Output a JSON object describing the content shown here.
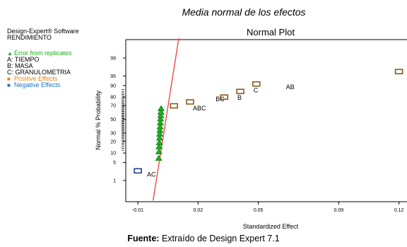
{
  "figure_title": "Media normal de los efectos",
  "caption": {
    "label": "Fuente:",
    "text": " Extraído de Design Expert 7.1"
  },
  "software": "Design-Expert® Software",
  "response": "RENDIMIENTO",
  "legend": [
    {
      "marker": "▲",
      "text": "Error from replicates",
      "color": "#1fae1f"
    },
    {
      "marker": "",
      "text": "A: TIEMPO",
      "color": "#000000"
    },
    {
      "marker": "",
      "text": "B: MASA",
      "color": "#000000"
    },
    {
      "marker": "",
      "text": "C: GRANULOMETRIA",
      "color": "#000000"
    },
    {
      "marker": "■",
      "text": "Positive Effects",
      "color": "#e8860f"
    },
    {
      "marker": "■",
      "text": "Negative Effects",
      "color": "#1f72d6"
    }
  ],
  "chart_data": {
    "type": "scatter",
    "title": "Normal Plot",
    "xlabel": "Standardized Effect",
    "ylabel": "Normal % Probability",
    "y_scale": "normal-probability",
    "xlim": [
      -0.016,
      0.124
    ],
    "x_ticks": [
      -0.01,
      0.02,
      0.05,
      0.09,
      0.12
    ],
    "x_tick_labels": [
      "-0.01",
      "0.02",
      "0.05",
      "0.09",
      "0.12"
    ],
    "y_ticks": [
      1,
      5,
      10,
      20,
      30,
      50,
      70,
      80,
      90,
      95,
      99
    ],
    "y_tick_labels": [
      "1",
      "5",
      "10",
      "20",
      "30",
      "50",
      "70",
      "80",
      "90",
      "95",
      "99"
    ],
    "grid": false,
    "line_color": "#f04a4a",
    "line": [
      [
        -0.0024,
        0.1
      ],
      [
        0.0104,
        99.9
      ]
    ],
    "error_points": [
      {
        "x": 0.0004,
        "y": 7
      },
      {
        "x": 0.0005,
        "y": 11
      },
      {
        "x": 0.0006,
        "y": 15
      },
      {
        "x": 0.0007,
        "y": 19
      },
      {
        "x": 0.0008,
        "y": 24
      },
      {
        "x": 0.0009,
        "y": 29
      },
      {
        "x": 0.001,
        "y": 34
      },
      {
        "x": 0.0011,
        "y": 39
      },
      {
        "x": 0.0012,
        "y": 45
      },
      {
        "x": 0.0013,
        "y": 51
      },
      {
        "x": 0.0014,
        "y": 56
      },
      {
        "x": 0.0015,
        "y": 61
      },
      {
        "x": 0.0016,
        "y": 66
      }
    ],
    "effects": [
      {
        "x": -0.01,
        "y": 2.5,
        "sign": "negative",
        "label": "AC"
      },
      {
        "x": 0.008,
        "y": 69.5,
        "sign": "positive",
        "label": ""
      },
      {
        "x": 0.016,
        "y": 74.5,
        "sign": "positive",
        "label": "ABC"
      },
      {
        "x": 0.033,
        "y": 80,
        "sign": "positive",
        "label": "BC"
      },
      {
        "x": 0.041,
        "y": 85.5,
        "sign": "positive",
        "label": "B"
      },
      {
        "x": 0.049,
        "y": 91,
        "sign": "positive",
        "label": "C"
      },
      {
        "x": 0.12,
        "y": 96.5,
        "sign": "positive",
        "label": "AB"
      }
    ],
    "marker_colors": {
      "error": "#1fae1f",
      "positive": "#8a5a1c",
      "negative": "#1f3f8a"
    }
  }
}
